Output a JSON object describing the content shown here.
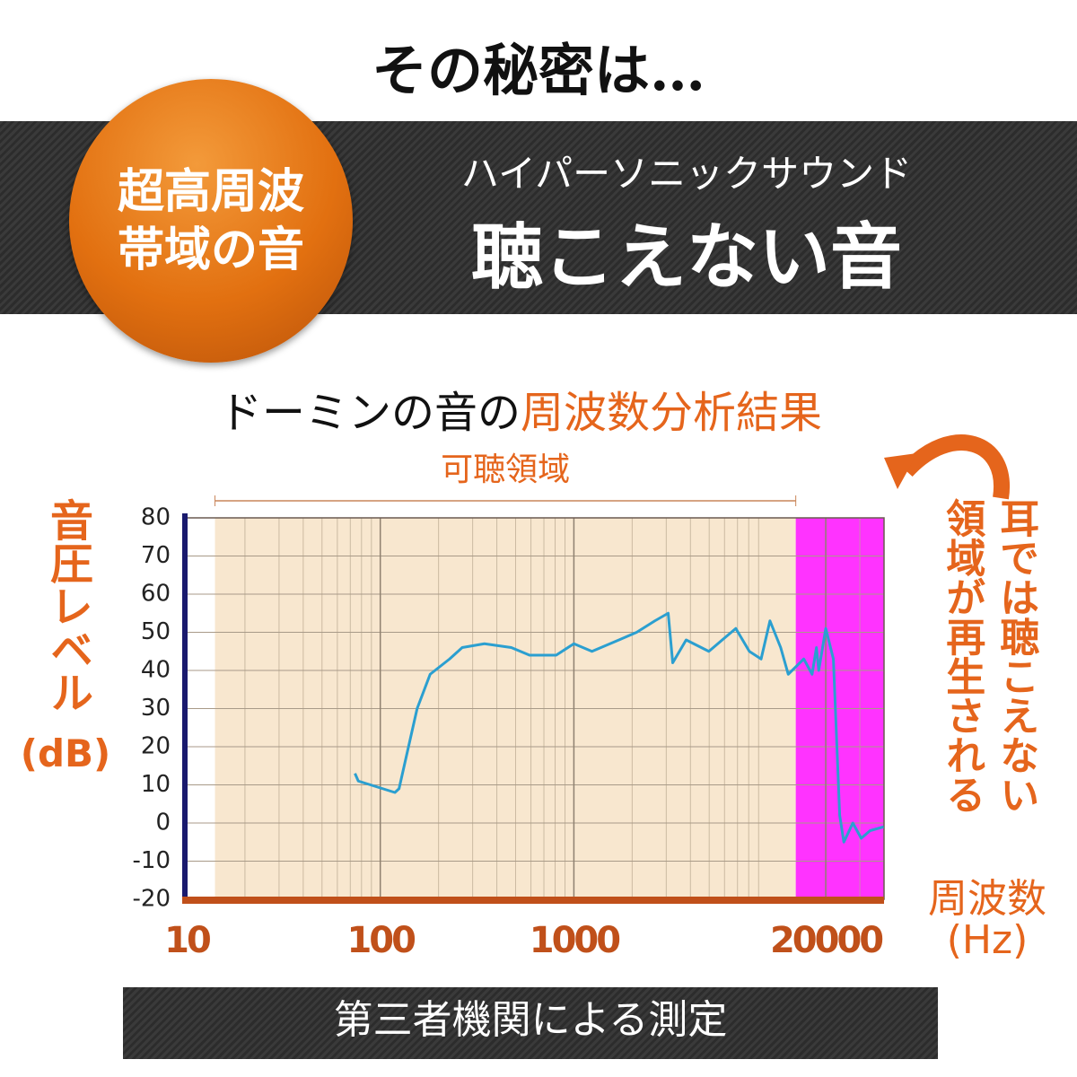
{
  "headline": "その秘密は…",
  "badge": {
    "lines": [
      "超高周波",
      "帯域の音"
    ]
  },
  "banner": {
    "ruby": "ハイパーソニックサウンド",
    "title": "聴こえない音"
  },
  "subtitle": {
    "plain": "ドーミンの音の",
    "highlight": "周波数分析結果"
  },
  "side_note": {
    "lines": [
      "耳では聴こえない",
      "領域が再生される"
    ]
  },
  "footer": "第三者機関による測定",
  "chart_data": {
    "type": "line",
    "y_label": {
      "main": "音圧レベル",
      "unit": "(dB)"
    },
    "x_label": {
      "main": "周波数",
      "unit": "(Hz)"
    },
    "x_scale": "log",
    "xlim": [
      10,
      40000
    ],
    "xticks": [
      10,
      100,
      1000,
      20000
    ],
    "ylim": [
      -20,
      80
    ],
    "yticks": [
      -20,
      -10,
      0,
      10,
      20,
      30,
      40,
      50,
      60,
      70,
      80
    ],
    "grid": true,
    "regions": [
      {
        "label": "可聴領域",
        "from": 14,
        "to": 14000,
        "color": "#f8e7cf"
      },
      {
        "from": 14000,
        "to": 40000,
        "color": "#ff33ff"
      }
    ],
    "series": [
      {
        "color": "#2b9fd0",
        "x": [
          74,
          77,
          119,
          125,
          155,
          181,
          228,
          265,
          345,
          475,
          590,
          810,
          1000,
          1240,
          1710,
          2110,
          2620,
          3070,
          3240,
          3800,
          4980,
          5840,
          6860,
          8060,
          9270,
          10300,
          11700,
          12800,
          15400,
          17000,
          17900,
          18400,
          20000,
          21900,
          23600,
          24800,
          27600,
          30500,
          33900,
          39800
        ],
        "values": [
          13,
          11,
          8,
          9,
          30,
          39,
          43,
          46,
          47,
          46,
          44,
          44,
          47,
          45,
          48,
          50,
          53,
          55,
          42,
          48,
          45,
          48,
          51,
          45,
          43,
          53,
          46,
          39,
          43,
          39,
          46,
          40,
          51,
          43,
          2,
          -5,
          0,
          -4,
          -2,
          -1
        ]
      }
    ]
  }
}
